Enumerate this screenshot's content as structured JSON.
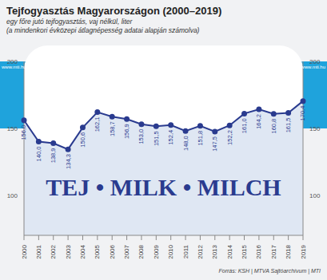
{
  "chart_data": {
    "type": "area",
    "title": "Tejfogyasztás Magyarországon (2000–2019)",
    "subtitle": [
      "egy főre jutó tejfogyasztás, vaj nélkül, liter",
      "(a mindenkori évközepi átlagnépesség adatai alapján számolva)"
    ],
    "annotation": "TEJ • MILK • MILCH",
    "source": "Forrás: KSH | MTVA Sajtóarchívum | MTI",
    "side_label": "www.mti.hu",
    "categories": [
      "2000",
      "2001",
      "2002",
      "2003",
      "2004",
      "2005",
      "2006",
      "2007",
      "2008",
      "2009",
      "2010",
      "2011",
      "2012",
      "2013",
      "2014",
      "2015",
      "2016",
      "2017",
      "2018",
      "2019"
    ],
    "values": [
      156.0,
      140.0,
      138.9,
      134.3,
      150.6,
      162.1,
      158.7,
      156.9,
      153.0,
      151.5,
      152.4,
      148.0,
      151.8,
      147.5,
      152.2,
      161.0,
      164.2,
      160.8,
      161.5,
      170.4
    ],
    "value_labels": [
      "156,0",
      "140,0",
      "138,9",
      "134,3",
      "150,6",
      "162,1",
      "158,7",
      "156,9",
      "153,0",
      "151,5",
      "152,4",
      "148,0",
      "151,8",
      "147,5",
      "152,2",
      "161,0",
      "164,2",
      "160,8",
      "161,5",
      "170,4"
    ],
    "color": "#2a3b8f",
    "ylim": [
      70,
      200
    ],
    "yticks": [
      100,
      150,
      200
    ],
    "grid": false,
    "data_labels": true
  }
}
